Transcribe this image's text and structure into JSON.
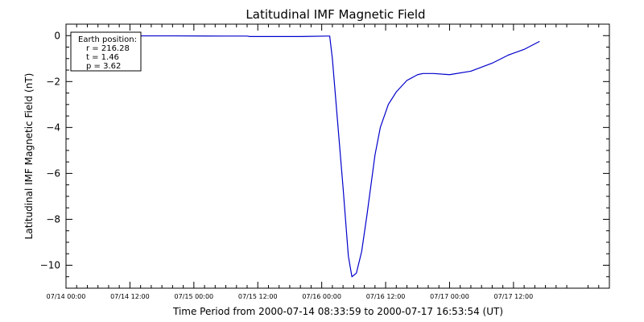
{
  "chart_data": {
    "type": "line",
    "title": "Latitudinal IMF Magnetic Field",
    "xlabel": "Time Period from 2000-07-14 08:33:59 to 2000-07-17 16:53:54 (UT)",
    "ylabel": "Latitudinal IMF Magnetic Field (nT)",
    "xlim": [
      "2000-07-14 00:00",
      "2000-07-18 06:00"
    ],
    "ylim": [
      -11,
      0.5
    ],
    "x_ticks": [
      {
        "value": "2000-07-14 00:00",
        "label": "07/14 00:00"
      },
      {
        "value": "2000-07-14 12:00",
        "label": "07/14 12:00"
      },
      {
        "value": "2000-07-15 00:00",
        "label": "07/15 00:00"
      },
      {
        "value": "2000-07-15 12:00",
        "label": "07/15 12:00"
      },
      {
        "value": "2000-07-16 00:00",
        "label": "07/16 00:00"
      },
      {
        "value": "2000-07-16 12:00",
        "label": "07/16 12:00"
      },
      {
        "value": "2000-07-17 00:00",
        "label": "07/17 00:00"
      },
      {
        "value": "2000-07-17 12:00",
        "label": "07/17 12:00"
      }
    ],
    "y_ticks": [
      {
        "value": 0,
        "label": "0"
      },
      {
        "value": -2,
        "label": "−2"
      },
      {
        "value": -4,
        "label": "−4"
      },
      {
        "value": -6,
        "label": "−6"
      },
      {
        "value": -8,
        "label": "−8"
      },
      {
        "value": -10,
        "label": "−10"
      }
    ],
    "grid": false,
    "legend": {
      "placement": "top-left",
      "lines": [
        "Earth position:",
        "r = 216.28",
        "t = 1.46",
        "p = 3.62"
      ]
    },
    "series": [
      {
        "color": "#0000cc",
        "points": [
          {
            "x": "2000-07-14 08:34",
            "y": -0.01
          },
          {
            "x": "2000-07-14 20:00",
            "y": -0.01
          },
          {
            "x": "2000-07-15 06:00",
            "y": -0.02
          },
          {
            "x": "2000-07-15 10:00",
            "y": -0.02
          },
          {
            "x": "2000-07-15 10:30",
            "y": -0.04
          },
          {
            "x": "2000-07-15 20:00",
            "y": -0.04
          },
          {
            "x": "2000-07-16 01:00",
            "y": -0.02
          },
          {
            "x": "2000-07-16 01:30",
            "y": -0.02
          },
          {
            "x": "2000-07-16 02:00",
            "y": -1.0
          },
          {
            "x": "2000-07-16 03:00",
            "y": -3.8
          },
          {
            "x": "2000-07-16 04:00",
            "y": -6.6
          },
          {
            "x": "2000-07-16 05:00",
            "y": -9.6
          },
          {
            "x": "2000-07-16 05:40",
            "y": -10.5
          },
          {
            "x": "2000-07-16 06:30",
            "y": -10.35
          },
          {
            "x": "2000-07-16 07:30",
            "y": -9.4
          },
          {
            "x": "2000-07-16 08:30",
            "y": -7.8
          },
          {
            "x": "2000-07-16 10:00",
            "y": -5.2
          },
          {
            "x": "2000-07-16 11:00",
            "y": -4.0
          },
          {
            "x": "2000-07-16 12:30",
            "y": -3.0
          },
          {
            "x": "2000-07-16 14:00",
            "y": -2.45
          },
          {
            "x": "2000-07-16 16:00",
            "y": -1.95
          },
          {
            "x": "2000-07-16 18:00",
            "y": -1.7
          },
          {
            "x": "2000-07-16 19:00",
            "y": -1.65
          },
          {
            "x": "2000-07-16 21:00",
            "y": -1.65
          },
          {
            "x": "2000-07-17 00:00",
            "y": -1.7
          },
          {
            "x": "2000-07-17 04:00",
            "y": -1.55
          },
          {
            "x": "2000-07-17 08:00",
            "y": -1.2
          },
          {
            "x": "2000-07-17 11:00",
            "y": -0.85
          },
          {
            "x": "2000-07-17 14:00",
            "y": -0.6
          },
          {
            "x": "2000-07-17 16:54",
            "y": -0.25
          }
        ]
      }
    ]
  }
}
